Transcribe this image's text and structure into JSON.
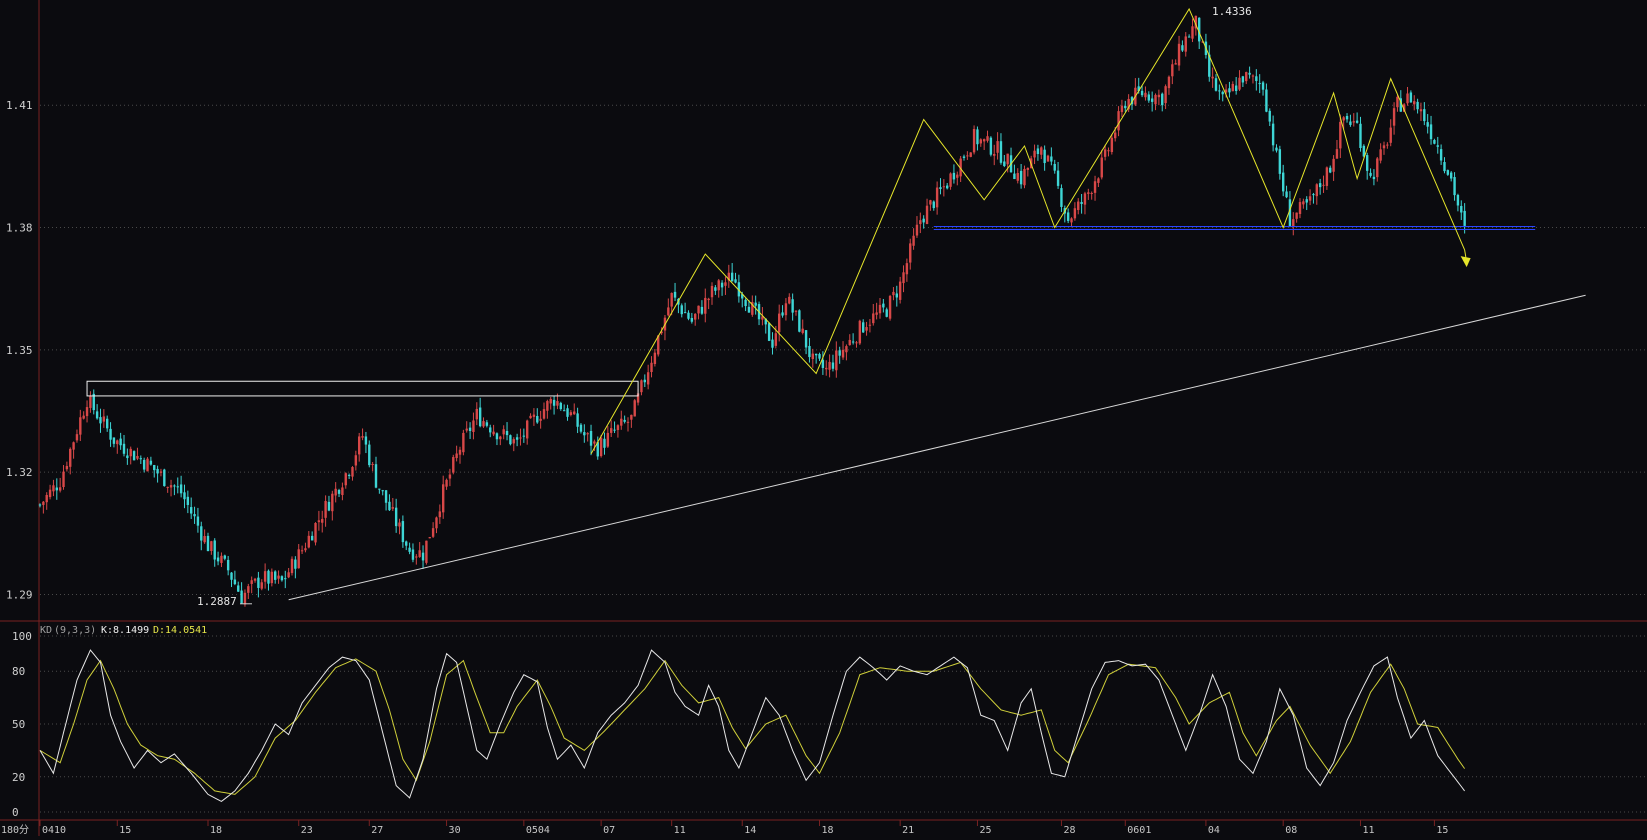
{
  "chart_data": {
    "type": "candlestick",
    "price_axis": {
      "ticks": [
        "1.41",
        "1.38",
        "1.35",
        "1.32",
        "1.29"
      ],
      "tick_values": [
        1.41,
        1.38,
        1.35,
        1.32,
        1.29
      ],
      "range": [
        1.2835,
        1.4358
      ]
    },
    "date_ticks": [
      {
        "i": 0,
        "label": "0410"
      },
      {
        "i": 23,
        "label": "15"
      },
      {
        "i": 50,
        "label": "18"
      },
      {
        "i": 77,
        "label": "23"
      },
      {
        "i": 98,
        "label": "27"
      },
      {
        "i": 121,
        "label": "30"
      },
      {
        "i": 144,
        "label": "0504"
      },
      {
        "i": 167,
        "label": "07"
      },
      {
        "i": 188,
        "label": "11"
      },
      {
        "i": 209,
        "label": "14"
      },
      {
        "i": 232,
        "label": "18"
      },
      {
        "i": 256,
        "label": "21"
      },
      {
        "i": 279,
        "label": "25"
      },
      {
        "i": 304,
        "label": "28"
      },
      {
        "i": 323,
        "label": "0601"
      },
      {
        "i": 347,
        "label": "04"
      },
      {
        "i": 370,
        "label": "08"
      },
      {
        "i": 393,
        "label": "11"
      },
      {
        "i": 415,
        "label": "15"
      }
    ],
    "timeframe_label": "180分",
    "annotations": {
      "high_label": "1.4336",
      "low_label": "1.2887",
      "high_value": 1.4336,
      "low_value": 1.2887
    },
    "price_path": [
      [
        0,
        1.312
      ],
      [
        6,
        1.318
      ],
      [
        14,
        1.338
      ],
      [
        22,
        1.328
      ],
      [
        32,
        1.322
      ],
      [
        42,
        1.315
      ],
      [
        50,
        1.302
      ],
      [
        56,
        1.296
      ],
      [
        60,
        1.2895
      ],
      [
        66,
        1.294
      ],
      [
        72,
        1.293
      ],
      [
        78,
        1.301
      ],
      [
        84,
        1.31
      ],
      [
        92,
        1.321
      ],
      [
        96,
        1.329
      ],
      [
        100,
        1.318
      ],
      [
        104,
        1.311
      ],
      [
        110,
        1.301
      ],
      [
        114,
        1.3
      ],
      [
        120,
        1.315
      ],
      [
        125,
        1.326
      ],
      [
        130,
        1.334
      ],
      [
        136,
        1.33
      ],
      [
        142,
        1.327
      ],
      [
        148,
        1.334
      ],
      [
        153,
        1.338
      ],
      [
        158,
        1.334
      ],
      [
        162,
        1.329
      ],
      [
        166,
        1.326
      ],
      [
        171,
        1.33
      ],
      [
        176,
        1.333
      ],
      [
        182,
        1.348
      ],
      [
        188,
        1.363
      ],
      [
        194,
        1.357
      ],
      [
        200,
        1.364
      ],
      [
        206,
        1.368
      ],
      [
        212,
        1.36
      ],
      [
        218,
        1.352
      ],
      [
        222,
        1.363
      ],
      [
        226,
        1.356
      ],
      [
        230,
        1.347
      ],
      [
        234,
        1.345
      ],
      [
        240,
        1.351
      ],
      [
        246,
        1.357
      ],
      [
        252,
        1.36
      ],
      [
        256,
        1.366
      ],
      [
        262,
        1.382
      ],
      [
        270,
        1.391
      ],
      [
        278,
        1.402
      ],
      [
        285,
        1.399
      ],
      [
        292,
        1.392
      ],
      [
        298,
        1.4
      ],
      [
        302,
        1.392
      ],
      [
        306,
        1.382
      ],
      [
        311,
        1.387
      ],
      [
        317,
        1.397
      ],
      [
        323,
        1.411
      ],
      [
        328,
        1.413
      ],
      [
        334,
        1.412
      ],
      [
        340,
        1.425
      ],
      [
        344,
        1.43
      ],
      [
        348,
        1.417
      ],
      [
        352,
        1.411
      ],
      [
        358,
        1.417
      ],
      [
        364,
        1.415
      ],
      [
        368,
        1.397
      ],
      [
        372,
        1.382
      ],
      [
        378,
        1.386
      ],
      [
        384,
        1.395
      ],
      [
        388,
        1.407
      ],
      [
        392,
        1.405
      ],
      [
        396,
        1.392
      ],
      [
        400,
        1.399
      ],
      [
        404,
        1.41
      ],
      [
        408,
        1.412
      ],
      [
        412,
        1.407
      ],
      [
        416,
        1.4
      ],
      [
        420,
        1.392
      ],
      [
        424,
        1.379
      ]
    ],
    "zigzag": [
      [
        164,
        1.3245
      ],
      [
        198,
        1.3735
      ],
      [
        231,
        1.3442
      ],
      [
        263,
        1.4065
      ],
      [
        281,
        1.3868
      ],
      [
        293,
        1.4
      ],
      [
        302,
        1.38
      ],
      [
        342,
        1.4336
      ],
      [
        370,
        1.38
      ],
      [
        385,
        1.413
      ],
      [
        392,
        1.392
      ],
      [
        402,
        1.4165
      ],
      [
        424,
        1.3745
      ]
    ],
    "zigzag_arrow_target": [
      424,
      1.3715
    ],
    "white_box": {
      "x0": 14,
      "x1": 178,
      "y_top": 1.3423,
      "y_bottom": 1.3387
    },
    "support_line": {
      "x0": 266,
      "x1": 445,
      "value": 1.38
    },
    "trendline": {
      "x0": 74,
      "y0": 1.2887,
      "x1": 460,
      "y1": 1.3634
    },
    "kd": {
      "label": "KD",
      "params": "(9,3,3)",
      "k_label": "K:8.1499",
      "d_label": "D:14.0541",
      "k_value": 8.1499,
      "d_value": 14.0541,
      "ticks": [
        "100",
        "80",
        "50",
        "20",
        "0"
      ],
      "tick_values": [
        100,
        80,
        50,
        20,
        0
      ],
      "k_path": [
        [
          0,
          35
        ],
        [
          4,
          22
        ],
        [
          7,
          45
        ],
        [
          11,
          75
        ],
        [
          15,
          92
        ],
        [
          18,
          85
        ],
        [
          21,
          55
        ],
        [
          24,
          40
        ],
        [
          28,
          25
        ],
        [
          32,
          35
        ],
        [
          36,
          28
        ],
        [
          40,
          33
        ],
        [
          45,
          22
        ],
        [
          50,
          10
        ],
        [
          54,
          6
        ],
        [
          58,
          12
        ],
        [
          62,
          22
        ],
        [
          66,
          35
        ],
        [
          70,
          50
        ],
        [
          74,
          44
        ],
        [
          78,
          62
        ],
        [
          82,
          72
        ],
        [
          86,
          82
        ],
        [
          90,
          88
        ],
        [
          94,
          86
        ],
        [
          98,
          75
        ],
        [
          102,
          45
        ],
        [
          106,
          15
        ],
        [
          110,
          8
        ],
        [
          114,
          30
        ],
        [
          118,
          70
        ],
        [
          121,
          90
        ],
        [
          124,
          85
        ],
        [
          127,
          60
        ],
        [
          130,
          35
        ],
        [
          133,
          30
        ],
        [
          137,
          50
        ],
        [
          141,
          68
        ],
        [
          144,
          78
        ],
        [
          148,
          74
        ],
        [
          151,
          48
        ],
        [
          154,
          30
        ],
        [
          158,
          38
        ],
        [
          162,
          25
        ],
        [
          166,
          45
        ],
        [
          170,
          55
        ],
        [
          174,
          62
        ],
        [
          178,
          72
        ],
        [
          182,
          92
        ],
        [
          186,
          85
        ],
        [
          189,
          68
        ],
        [
          192,
          60
        ],
        [
          196,
          55
        ],
        [
          199,
          72
        ],
        [
          202,
          60
        ],
        [
          205,
          35
        ],
        [
          208,
          25
        ],
        [
          212,
          45
        ],
        [
          216,
          65
        ],
        [
          220,
          55
        ],
        [
          224,
          35
        ],
        [
          228,
          18
        ],
        [
          232,
          28
        ],
        [
          236,
          55
        ],
        [
          240,
          80
        ],
        [
          244,
          88
        ],
        [
          248,
          82
        ],
        [
          252,
          75
        ],
        [
          256,
          83
        ],
        [
          260,
          80
        ],
        [
          264,
          78
        ],
        [
          268,
          83
        ],
        [
          272,
          88
        ],
        [
          276,
          82
        ],
        [
          280,
          55
        ],
        [
          284,
          52
        ],
        [
          288,
          35
        ],
        [
          292,
          62
        ],
        [
          295,
          70
        ],
        [
          298,
          45
        ],
        [
          301,
          22
        ],
        [
          305,
          20
        ],
        [
          309,
          45
        ],
        [
          313,
          70
        ],
        [
          317,
          85
        ],
        [
          321,
          86
        ],
        [
          325,
          83
        ],
        [
          329,
          84
        ],
        [
          333,
          75
        ],
        [
          337,
          55
        ],
        [
          341,
          35
        ],
        [
          345,
          55
        ],
        [
          349,
          78
        ],
        [
          353,
          60
        ],
        [
          357,
          30
        ],
        [
          361,
          22
        ],
        [
          365,
          40
        ],
        [
          369,
          70
        ],
        [
          373,
          55
        ],
        [
          377,
          25
        ],
        [
          381,
          15
        ],
        [
          385,
          28
        ],
        [
          389,
          52
        ],
        [
          393,
          68
        ],
        [
          397,
          83
        ],
        [
          401,
          88
        ],
        [
          404,
          65
        ],
        [
          408,
          42
        ],
        [
          412,
          52
        ],
        [
          416,
          32
        ],
        [
          420,
          22
        ],
        [
          424,
          12
        ],
        [
          428,
          8
        ]
      ],
      "d_path": [
        [
          0,
          35
        ],
        [
          6,
          28
        ],
        [
          10,
          50
        ],
        [
          14,
          75
        ],
        [
          18,
          86
        ],
        [
          22,
          70
        ],
        [
          26,
          50
        ],
        [
          30,
          38
        ],
        [
          35,
          32
        ],
        [
          40,
          30
        ],
        [
          46,
          22
        ],
        [
          52,
          12
        ],
        [
          58,
          10
        ],
        [
          64,
          20
        ],
        [
          70,
          42
        ],
        [
          76,
          52
        ],
        [
          82,
          68
        ],
        [
          88,
          82
        ],
        [
          94,
          87
        ],
        [
          100,
          80
        ],
        [
          104,
          58
        ],
        [
          108,
          30
        ],
        [
          112,
          18
        ],
        [
          116,
          40
        ],
        [
          121,
          78
        ],
        [
          126,
          86
        ],
        [
          130,
          65
        ],
        [
          134,
          45
        ],
        [
          138,
          45
        ],
        [
          142,
          60
        ],
        [
          148,
          75
        ],
        [
          152,
          60
        ],
        [
          156,
          42
        ],
        [
          162,
          35
        ],
        [
          168,
          46
        ],
        [
          174,
          58
        ],
        [
          180,
          70
        ],
        [
          186,
          86
        ],
        [
          191,
          72
        ],
        [
          196,
          62
        ],
        [
          202,
          65
        ],
        [
          206,
          48
        ],
        [
          210,
          36
        ],
        [
          216,
          50
        ],
        [
          222,
          55
        ],
        [
          228,
          32
        ],
        [
          232,
          22
        ],
        [
          238,
          45
        ],
        [
          244,
          78
        ],
        [
          250,
          82
        ],
        [
          258,
          80
        ],
        [
          266,
          80
        ],
        [
          274,
          85
        ],
        [
          280,
          70
        ],
        [
          286,
          58
        ],
        [
          292,
          55
        ],
        [
          298,
          58
        ],
        [
          302,
          35
        ],
        [
          306,
          28
        ],
        [
          312,
          52
        ],
        [
          318,
          78
        ],
        [
          324,
          84
        ],
        [
          332,
          82
        ],
        [
          338,
          65
        ],
        [
          342,
          50
        ],
        [
          348,
          62
        ],
        [
          354,
          68
        ],
        [
          358,
          45
        ],
        [
          362,
          32
        ],
        [
          368,
          52
        ],
        [
          372,
          60
        ],
        [
          378,
          38
        ],
        [
          384,
          22
        ],
        [
          390,
          40
        ],
        [
          396,
          68
        ],
        [
          402,
          84
        ],
        [
          406,
          70
        ],
        [
          410,
          50
        ],
        [
          416,
          48
        ],
        [
          422,
          30
        ],
        [
          428,
          14
        ]
      ]
    }
  }
}
